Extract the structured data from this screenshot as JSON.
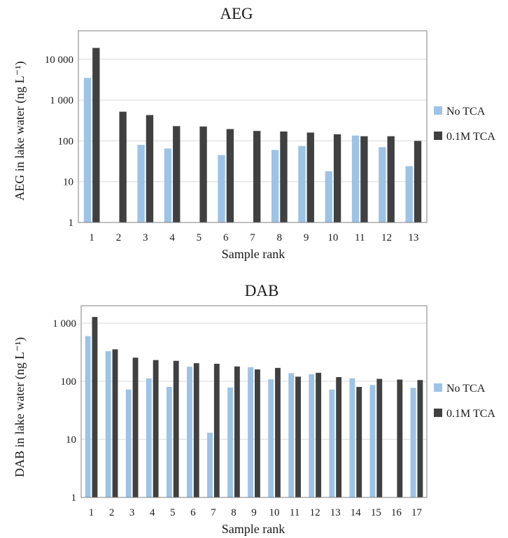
{
  "colors": {
    "no_tca": "#9dc3e6",
    "tca": "#404040",
    "grid": "#d9d9d9",
    "axis": "#7f7f7f"
  },
  "chart_data": [
    {
      "type": "bar",
      "title": "AEG",
      "xlabel": "Sample rank",
      "ylabel": "AEG in lake water  (ng L⁻¹)",
      "yscale": "log",
      "ylim": [
        1,
        50000
      ],
      "y_ticks": [
        1,
        10,
        100,
        1000,
        10000
      ],
      "y_tick_labels": [
        "1",
        "10",
        "100",
        "1 000",
        "10 000"
      ],
      "categories": [
        "1",
        "2",
        "3",
        "4",
        "5",
        "6",
        "7",
        "8",
        "9",
        "10",
        "11",
        "12",
        "13"
      ],
      "legend_position": "right",
      "series": [
        {
          "name": "No TCA",
          "color": "#9dc3e6",
          "values": [
            3500,
            null,
            80,
            65,
            null,
            45,
            null,
            60,
            75,
            18,
            135,
            70,
            24
          ]
        },
        {
          "name": "0.1M TCA",
          "color": "#404040",
          "values": [
            19000,
            520,
            430,
            230,
            225,
            195,
            175,
            170,
            160,
            145,
            130,
            130,
            100
          ]
        }
      ]
    },
    {
      "type": "bar",
      "title": "DAB",
      "xlabel": "Sample rank",
      "ylabel": "DAB in lake water  (ng L⁻¹)",
      "yscale": "log",
      "ylim": [
        1,
        2000
      ],
      "y_ticks": [
        1,
        10,
        100,
        1000
      ],
      "y_tick_labels": [
        "1",
        "10",
        "100",
        "1 000"
      ],
      "categories": [
        "1",
        "2",
        "3",
        "4",
        "5",
        "6",
        "7",
        "8",
        "9",
        "10",
        "11",
        "12",
        "13",
        "14",
        "15",
        "16",
        "17"
      ],
      "legend_position": "right",
      "series": [
        {
          "name": "No TCA",
          "color": "#9dc3e6",
          "values": [
            600,
            330,
            72,
            112,
            80,
            178,
            13,
            78,
            175,
            108,
            138,
            132,
            72,
            112,
            86,
            null,
            77
          ]
        },
        {
          "name": "0.1M TCA",
          "color": "#404040",
          "values": [
            1280,
            355,
            255,
            232,
            225,
            205,
            200,
            180,
            160,
            170,
            120,
            140,
            118,
            80,
            110,
            107,
            105
          ]
        }
      ]
    }
  ]
}
